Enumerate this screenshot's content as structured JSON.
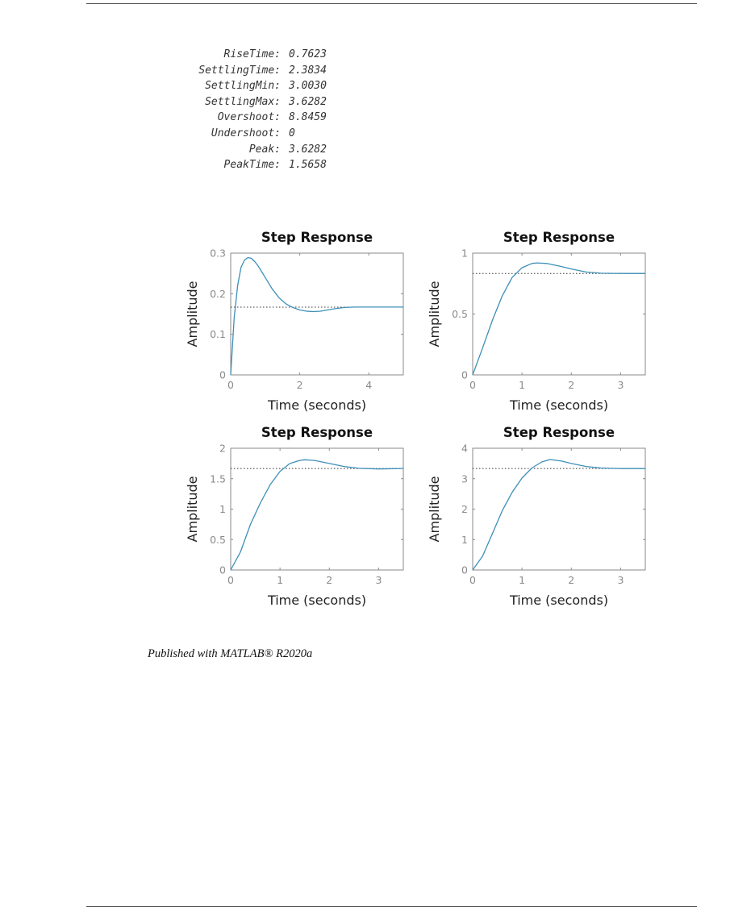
{
  "stepinfo": [
    {
      "key": "RiseTime:",
      "value": "0.7623"
    },
    {
      "key": "SettlingTime:",
      "value": "2.3834"
    },
    {
      "key": "SettlingMin:",
      "value": "3.0030"
    },
    {
      "key": "SettlingMax:",
      "value": "3.6282"
    },
    {
      "key": "Overshoot:",
      "value": "8.8459"
    },
    {
      "key": "Undershoot:",
      "value": "0"
    },
    {
      "key": "Peak:",
      "value": "3.6282"
    },
    {
      "key": "PeakTime:",
      "value": "1.5658"
    }
  ],
  "footer": "Published with MATLAB® R2020a",
  "colors": {
    "line": "#3d8fb8",
    "axes": "#8a8a8a",
    "ref": "#333333"
  },
  "chart_data": [
    {
      "type": "line",
      "title": "Step Response",
      "xlabel": "Time (seconds)",
      "ylabel": "Amplitude",
      "xlim": [
        0,
        5
      ],
      "ylim": [
        0,
        0.3
      ],
      "xticks": [
        0,
        2,
        4
      ],
      "yticks": [
        0,
        0.1,
        0.2,
        0.3
      ],
      "final_value": 0.167,
      "grid": false,
      "series": [
        {
          "x": [
            0,
            0.1,
            0.2,
            0.3,
            0.4,
            0.5,
            0.6,
            0.7,
            0.8,
            1.0,
            1.2,
            1.4,
            1.6,
            1.8,
            2.0,
            2.2,
            2.4,
            2.6,
            2.8,
            3.0,
            3.3,
            3.6,
            4.0,
            5.0
          ],
          "y": [
            0,
            0.14,
            0.22,
            0.265,
            0.283,
            0.289,
            0.287,
            0.279,
            0.268,
            0.24,
            0.212,
            0.19,
            0.175,
            0.166,
            0.16,
            0.157,
            0.156,
            0.157,
            0.16,
            0.163,
            0.166,
            0.167,
            0.167,
            0.167
          ]
        }
      ]
    },
    {
      "type": "line",
      "title": "Step Response",
      "xlabel": "Time (seconds)",
      "ylabel": "Amplitude",
      "xlim": [
        0,
        3.5
      ],
      "ylim": [
        0,
        1
      ],
      "xticks": [
        0,
        1,
        2,
        3
      ],
      "yticks": [
        0,
        0.5,
        1
      ],
      "final_value": 0.833,
      "grid": false,
      "series": [
        {
          "x": [
            0,
            0.2,
            0.4,
            0.6,
            0.8,
            1.0,
            1.2,
            1.3,
            1.5,
            1.8,
            2.0,
            2.3,
            2.6,
            3.0,
            3.5
          ],
          "y": [
            0,
            0.22,
            0.45,
            0.65,
            0.8,
            0.88,
            0.915,
            0.92,
            0.915,
            0.89,
            0.87,
            0.845,
            0.835,
            0.833,
            0.833
          ]
        }
      ]
    },
    {
      "type": "line",
      "title": "Step Response",
      "xlabel": "Time (seconds)",
      "ylabel": "Amplitude",
      "xlim": [
        0,
        3.5
      ],
      "ylim": [
        0,
        2
      ],
      "xticks": [
        0,
        1,
        2,
        3
      ],
      "yticks": [
        0,
        0.5,
        1,
        1.5,
        2
      ],
      "final_value": 1.667,
      "grid": false,
      "series": [
        {
          "x": [
            0,
            0.2,
            0.4,
            0.6,
            0.8,
            1.0,
            1.2,
            1.4,
            1.5,
            1.7,
            2.0,
            2.3,
            2.6,
            3.0,
            3.5
          ],
          "y": [
            0,
            0.3,
            0.75,
            1.1,
            1.4,
            1.62,
            1.75,
            1.8,
            1.81,
            1.8,
            1.75,
            1.7,
            1.67,
            1.66,
            1.667
          ]
        }
      ]
    },
    {
      "type": "line",
      "title": "Step Response",
      "xlabel": "Time (seconds)",
      "ylabel": "Amplitude",
      "xlim": [
        0,
        3.5
      ],
      "ylim": [
        0,
        4
      ],
      "xticks": [
        0,
        1,
        2,
        3
      ],
      "yticks": [
        0,
        1,
        2,
        3,
        4
      ],
      "final_value": 3.333,
      "grid": false,
      "series": [
        {
          "x": [
            0,
            0.2,
            0.4,
            0.6,
            0.8,
            1.0,
            1.2,
            1.4,
            1.5658,
            1.8,
            2.0,
            2.3,
            2.6,
            3.0,
            3.5
          ],
          "y": [
            0,
            0.45,
            1.2,
            1.95,
            2.55,
            3.02,
            3.35,
            3.55,
            3.6282,
            3.58,
            3.5,
            3.4,
            3.35,
            3.333,
            3.333
          ]
        }
      ]
    }
  ]
}
